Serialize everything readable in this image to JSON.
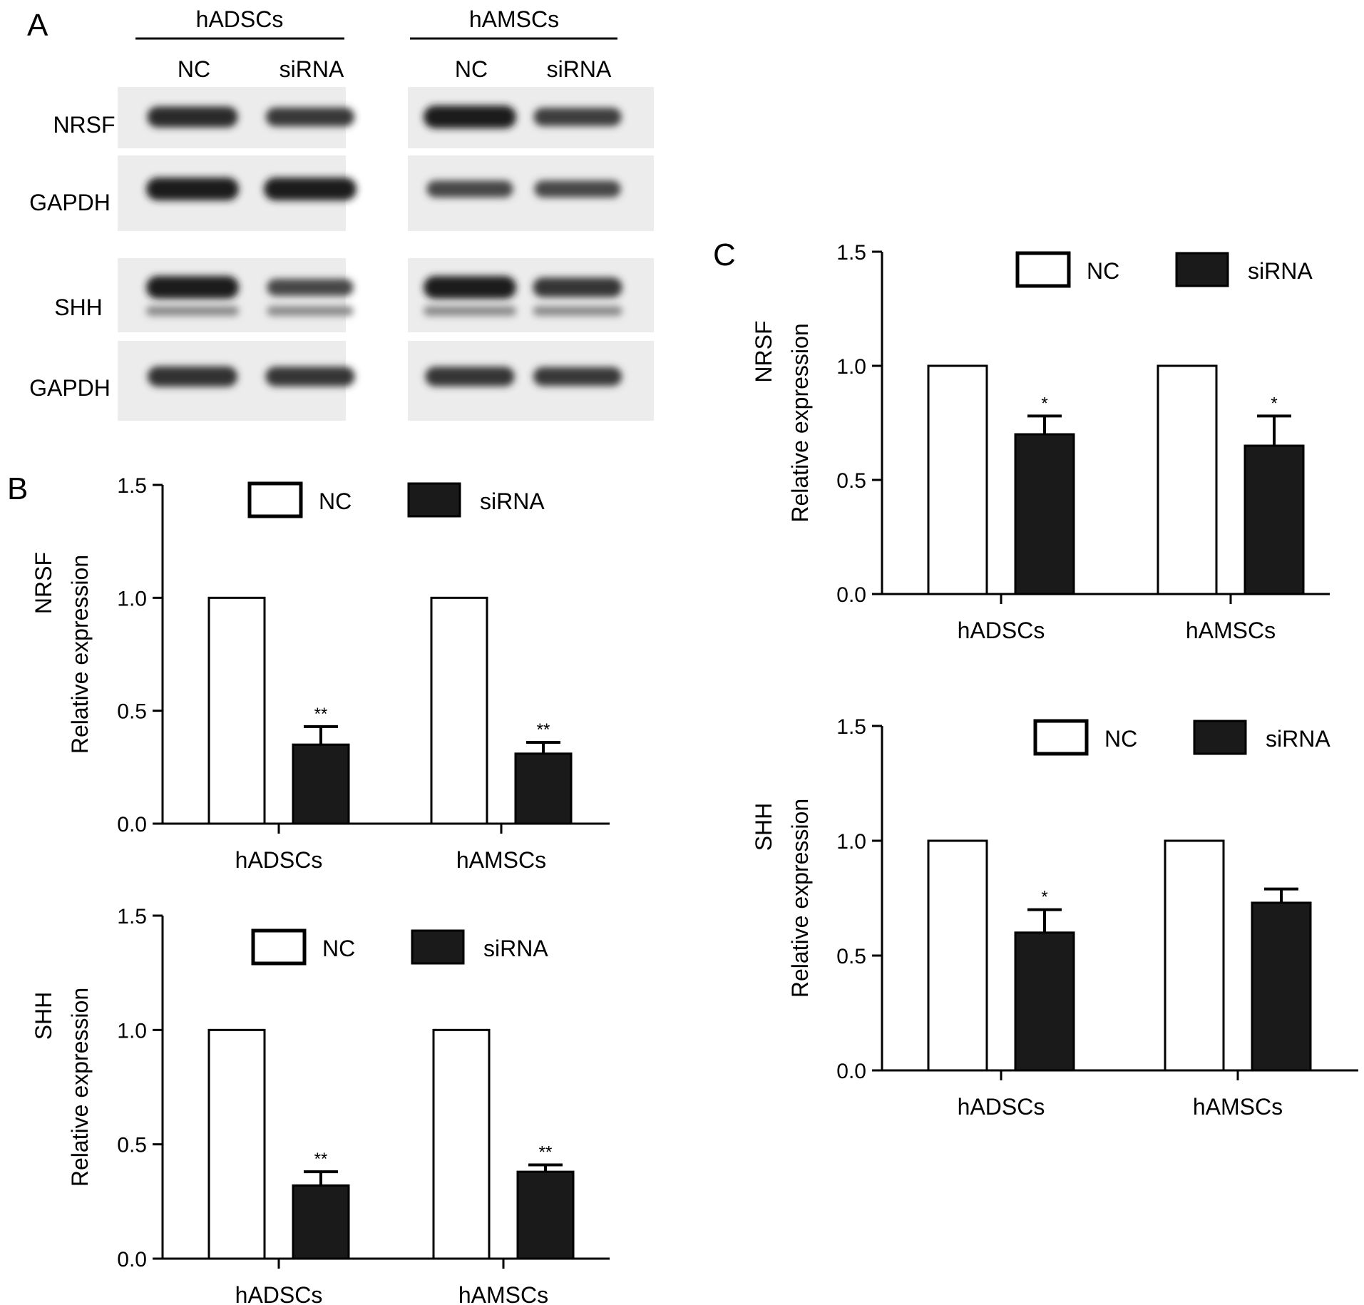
{
  "blot": {
    "panel_label": "A",
    "groups": [
      {
        "name": "hADSCs",
        "lanes": [
          "NC",
          "siRNA"
        ]
      },
      {
        "name": "hAMSCs",
        "lanes": [
          "NC",
          "siRNA"
        ]
      }
    ],
    "rows": [
      {
        "label": "NRSF",
        "intensity": {
          "hADSCs": [
            0.85,
            0.7
          ],
          "hAMSCs": [
            1.0,
            0.65
          ]
        }
      },
      {
        "label": "GAPDH",
        "intensity": {
          "hADSCs": [
            1.0,
            1.0
          ],
          "hAMSCs": [
            0.55,
            0.55
          ]
        }
      },
      {
        "label": "SHH",
        "intensity": {
          "hADSCs": [
            1.0,
            0.55
          ],
          "hAMSCs": [
            1.0,
            0.75
          ]
        }
      },
      {
        "label": "GAPDH",
        "intensity": {
          "hADSCs": [
            0.8,
            0.75
          ],
          "hAMSCs": [
            0.75,
            0.7
          ]
        }
      }
    ]
  },
  "chart_data": [
    {
      "panel": "B",
      "type": "bar",
      "ylabel": "Relative expression",
      "row_label": "NRSF",
      "categories": [
        "hADSCs",
        "hAMSCs"
      ],
      "series": [
        {
          "name": "NC",
          "values": [
            1.0,
            1.0
          ]
        },
        {
          "name": "siRNA",
          "values": [
            0.35,
            0.31
          ]
        }
      ],
      "errors": {
        "siRNA": [
          0.08,
          0.05
        ]
      },
      "significance": {
        "siRNA": [
          "**",
          "**"
        ]
      },
      "ylim": [
        0,
        1.5
      ],
      "yticks": [
        "0.0",
        "0.5",
        "1.0",
        "1.5"
      ],
      "legend": "top"
    },
    {
      "panel": "",
      "type": "bar",
      "ylabel": "Relative expression",
      "row_label": "SHH",
      "categories": [
        "hADSCs",
        "hAMSCs"
      ],
      "series": [
        {
          "name": "NC",
          "values": [
            1.0,
            1.0
          ]
        },
        {
          "name": "siRNA",
          "values": [
            0.32,
            0.38
          ]
        }
      ],
      "errors": {
        "siRNA": [
          0.06,
          0.03
        ]
      },
      "significance": {
        "siRNA": [
          "**",
          "**"
        ]
      },
      "ylim": [
        0,
        1.5
      ],
      "yticks": [
        "0.0",
        "0.5",
        "1.0",
        "1.5"
      ],
      "legend": "top"
    },
    {
      "panel": "C",
      "type": "bar",
      "ylabel": "Relative expression",
      "row_label": "NRSF",
      "categories": [
        "hADSCs",
        "hAMSCs"
      ],
      "series": [
        {
          "name": "NC",
          "values": [
            1.0,
            1.0
          ]
        },
        {
          "name": "siRNA",
          "values": [
            0.7,
            0.65
          ]
        }
      ],
      "errors": {
        "siRNA": [
          0.08,
          0.13
        ]
      },
      "significance": {
        "siRNA": [
          "*",
          "*"
        ]
      },
      "ylim": [
        0,
        1.5
      ],
      "yticks": [
        "0.0",
        "0.5",
        "1.0",
        "1.5"
      ],
      "legend": "top"
    },
    {
      "panel": "",
      "type": "bar",
      "ylabel": "Relative expression",
      "row_label": "SHH",
      "categories": [
        "hADSCs",
        "hAMSCs"
      ],
      "series": [
        {
          "name": "NC",
          "values": [
            1.0,
            1.0
          ]
        },
        {
          "name": "siRNA",
          "values": [
            0.6,
            0.73
          ]
        }
      ],
      "errors": {
        "siRNA": [
          0.1,
          0.06
        ]
      },
      "significance": {
        "siRNA": [
          "*",
          ""
        ]
      },
      "ylim": [
        0,
        1.5
      ],
      "yticks": [
        "0.0",
        "0.5",
        "1.0",
        "1.5"
      ],
      "legend": "top"
    }
  ],
  "colors": {
    "nc_fill": "#ffffff",
    "sirna_fill": "#1a1a1a",
    "axis": "#000000",
    "band": "#1c1c1c"
  }
}
